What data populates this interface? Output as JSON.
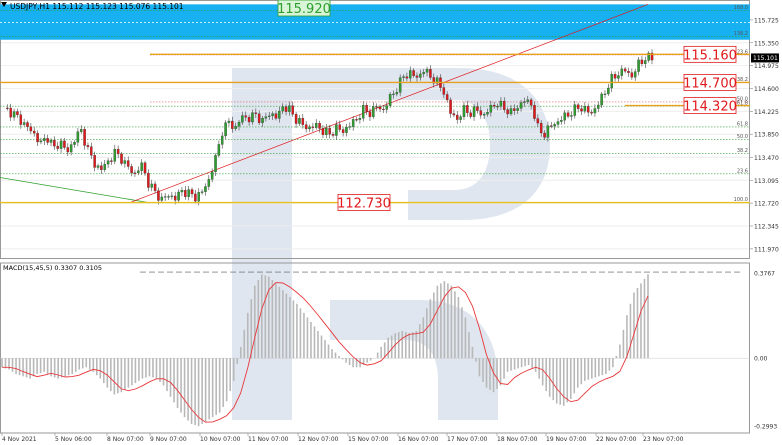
{
  "header": {
    "symbol_line": "USDJPY,H1  115.112 115.123 115.076 115.101",
    "macd_line": "MACD(15,45,5) 0.3307 0.3105"
  },
  "colors": {
    "bull": "#2e9e2e",
    "bear": "#e0191c",
    "signal": "#e8383b",
    "hist": "#b8b8b8",
    "band": "#17b0f0",
    "watermark": "#b8c8dc"
  },
  "chart_data": {
    "type": "candlestick",
    "symbol": "USDJPY",
    "timeframe": "H1",
    "ohlc_readout": {
      "open": 115.112,
      "high": 115.123,
      "low": 115.076,
      "close": 115.101
    },
    "price_axis_ticks": [
      "115.725",
      "115.350",
      "114.975",
      "114.600",
      "114.225",
      "113.850",
      "113.470",
      "113.095",
      "112.720",
      "112.345",
      "111.970"
    ],
    "last_price_tag": "115.101",
    "time_axis_ticks": [
      "4 Nov 2021",
      "5 Nov 06:00",
      "8 Nov 07:00",
      "9 Nov 07:00",
      "10 Nov 07:00",
      "11 Nov 07:00",
      "12 Nov 07:00",
      "15 Nov 07:00",
      "16 Nov 07:00",
      "17 Nov 07:00",
      "18 Nov 07:00",
      "19 Nov 07:00",
      "22 Nov 07:00",
      "23 Nov 07:00"
    ],
    "price_path": [
      [
        0,
        114.28
      ],
      [
        3,
        114.18
      ],
      [
        6,
        114.02
      ],
      [
        9,
        113.85
      ],
      [
        11,
        113.7
      ],
      [
        13,
        113.8
      ],
      [
        15,
        113.62
      ],
      [
        17,
        113.72
      ],
      [
        19,
        113.55
      ],
      [
        21,
        113.78
      ],
      [
        23,
        113.9
      ],
      [
        25,
        113.6
      ],
      [
        27,
        113.35
      ],
      [
        29,
        113.28
      ],
      [
        31,
        113.4
      ],
      [
        33,
        113.55
      ],
      [
        35,
        113.45
      ],
      [
        37,
        113.3
      ],
      [
        39,
        113.2
      ],
      [
        41,
        113.35
      ],
      [
        43,
        113.05
      ],
      [
        45,
        112.9
      ],
      [
        47,
        112.78
      ],
      [
        49,
        112.85
      ],
      [
        51,
        112.8
      ],
      [
        53,
        112.92
      ],
      [
        55,
        112.88
      ],
      [
        57,
        112.82
      ],
      [
        59,
        112.9
      ],
      [
        61,
        113.1
      ],
      [
        63,
        113.45
      ],
      [
        65,
        113.9
      ],
      [
        67,
        114.05
      ],
      [
        69,
        113.95
      ],
      [
        71,
        114.15
      ],
      [
        73,
        114.1
      ],
      [
        75,
        114.18
      ],
      [
        77,
        114.05
      ],
      [
        79,
        114.2
      ],
      [
        81,
        114.12
      ],
      [
        83,
        114.3
      ],
      [
        85,
        114.25
      ],
      [
        87,
        114.1
      ],
      [
        89,
        114.0
      ],
      [
        91,
        113.95
      ],
      [
        93,
        114.0
      ],
      [
        95,
        113.9
      ],
      [
        97,
        113.85
      ],
      [
        99,
        113.95
      ],
      [
        101,
        113.9
      ],
      [
        103,
        114.0
      ],
      [
        105,
        114.1
      ],
      [
        107,
        114.25
      ],
      [
        109,
        114.2
      ],
      [
        111,
        114.3
      ],
      [
        113,
        114.25
      ],
      [
        115,
        114.45
      ],
      [
        117,
        114.6
      ],
      [
        119,
        114.8
      ],
      [
        121,
        114.85
      ],
      [
        123,
        114.78
      ],
      [
        125,
        114.9
      ],
      [
        127,
        114.8
      ],
      [
        129,
        114.7
      ],
      [
        131,
        114.55
      ],
      [
        133,
        114.2
      ],
      [
        135,
        114.1
      ],
      [
        137,
        114.25
      ],
      [
        139,
        114.2
      ],
      [
        141,
        114.25
      ],
      [
        143,
        114.15
      ],
      [
        145,
        114.3
      ],
      [
        147,
        114.35
      ],
      [
        149,
        114.28
      ],
      [
        151,
        114.2
      ],
      [
        153,
        114.3
      ],
      [
        155,
        114.4
      ],
      [
        157,
        114.35
      ],
      [
        159,
        113.95
      ],
      [
        161,
        113.85
      ],
      [
        163,
        114.0
      ],
      [
        165,
        114.05
      ],
      [
        167,
        114.15
      ],
      [
        169,
        114.2
      ],
      [
        171,
        114.3
      ],
      [
        173,
        114.25
      ],
      [
        175,
        114.2
      ],
      [
        177,
        114.35
      ],
      [
        179,
        114.55
      ],
      [
        181,
        114.75
      ],
      [
        183,
        114.85
      ],
      [
        185,
        114.9
      ],
      [
        187,
        114.8
      ],
      [
        189,
        115.0
      ],
      [
        191,
        115.1
      ],
      [
        193,
        115.1
      ]
    ],
    "levels": [
      {
        "price": 115.92,
        "label": "115.920"
      },
      {
        "price": 115.16,
        "label": "115.160"
      },
      {
        "price": 114.7,
        "label": "114.700"
      },
      {
        "price": 114.32,
        "label": "114.320"
      },
      {
        "price": 112.73,
        "label": "112.730"
      }
    ],
    "fibo_right": [
      {
        "ratio": "168.0",
        "price": 115.88
      },
      {
        "ratio": "138.2",
        "price": 115.45
      },
      {
        "ratio": "23.6",
        "price": 115.15
      },
      {
        "ratio": "38.2",
        "price": 114.7
      },
      {
        "ratio": "50.0",
        "price": 114.38
      },
      {
        "ratio": "61.8",
        "price": 114.31
      },
      {
        "ratio": "61.8",
        "price": 113.97
      },
      {
        "ratio": "50.0",
        "price": 113.76
      },
      {
        "ratio": "38.2",
        "price": 113.53
      },
      {
        "ratio": "23.6",
        "price": 113.2
      },
      {
        "ratio": "100.0",
        "price": 112.73
      }
    ],
    "macd": {
      "params": "MACD(15,45,5)",
      "main": 0.3307,
      "signal": 0.3105,
      "axis_ticks": [
        "0.3767",
        "0.00",
        "-0.2993"
      ],
      "ylim": [
        -0.33,
        0.42
      ],
      "values": [
        -0.04,
        -0.05,
        -0.07,
        -0.08,
        -0.09,
        -0.07,
        -0.06,
        -0.08,
        -0.09,
        -0.08,
        -0.07,
        -0.05,
        -0.04,
        -0.06,
        -0.09,
        -0.13,
        -0.16,
        -0.15,
        -0.13,
        -0.11,
        -0.09,
        -0.08,
        -0.09,
        -0.12,
        -0.17,
        -0.22,
        -0.26,
        -0.29,
        -0.3,
        -0.28,
        -0.26,
        -0.24,
        -0.19,
        -0.1,
        0.05,
        0.2,
        0.32,
        0.37,
        0.36,
        0.33,
        0.3,
        0.27,
        0.24,
        0.2,
        0.16,
        0.12,
        0.08,
        0.04,
        0.01,
        -0.02,
        -0.04,
        -0.04,
        -0.02,
        0.0,
        0.05,
        0.09,
        0.11,
        0.12,
        0.11,
        0.12,
        0.18,
        0.26,
        0.32,
        0.34,
        0.32,
        0.27,
        0.18,
        0.05,
        -0.08,
        -0.13,
        -0.15,
        -0.12,
        -0.06,
        -0.05,
        -0.04,
        -0.03,
        -0.06,
        -0.12,
        -0.17,
        -0.2,
        -0.21,
        -0.18,
        -0.13,
        -0.1,
        -0.09,
        -0.08,
        -0.07,
        -0.04,
        0.06,
        0.19,
        0.29,
        0.33,
        0.37
      ]
    }
  }
}
